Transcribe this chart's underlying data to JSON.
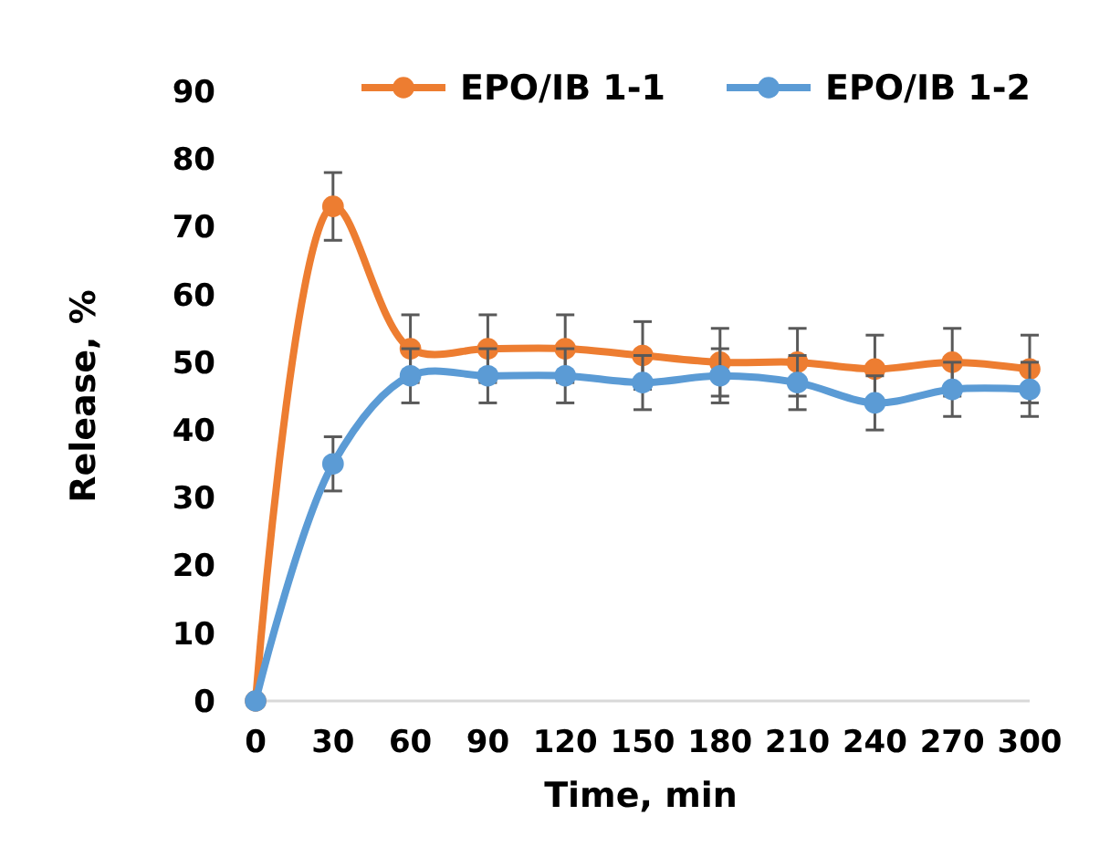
{
  "chart_data": {
    "type": "line",
    "xlabel": "Time, min",
    "ylabel": "Release, %",
    "x": [
      0,
      30,
      60,
      90,
      120,
      150,
      180,
      210,
      240,
      270,
      300
    ],
    "xlim": [
      0,
      300
    ],
    "xticks": [
      0,
      30,
      60,
      90,
      120,
      150,
      180,
      210,
      240,
      270,
      300
    ],
    "ylim": [
      0,
      90
    ],
    "yticks": [
      0,
      10,
      20,
      30,
      40,
      50,
      60,
      70,
      80,
      90
    ],
    "grid": false,
    "legend": "top",
    "marker": "circle",
    "line_style": "solid",
    "series": [
      {
        "name": "EPO/IB 1-1",
        "color": "#ed7d31",
        "values": [
          0,
          73,
          52,
          52,
          52,
          51,
          50,
          50,
          49,
          50,
          49
        ],
        "errors": [
          null,
          5,
          5,
          5,
          5,
          5,
          5,
          5,
          5,
          5,
          5
        ]
      },
      {
        "name": "EPO/IB 1-2",
        "color": "#5b9bd5",
        "values": [
          0,
          35,
          48,
          48,
          48,
          47,
          48,
          47,
          44,
          46,
          46
        ],
        "errors": [
          null,
          4,
          4,
          4,
          4,
          4,
          4,
          4,
          4,
          4,
          4
        ]
      }
    ]
  }
}
